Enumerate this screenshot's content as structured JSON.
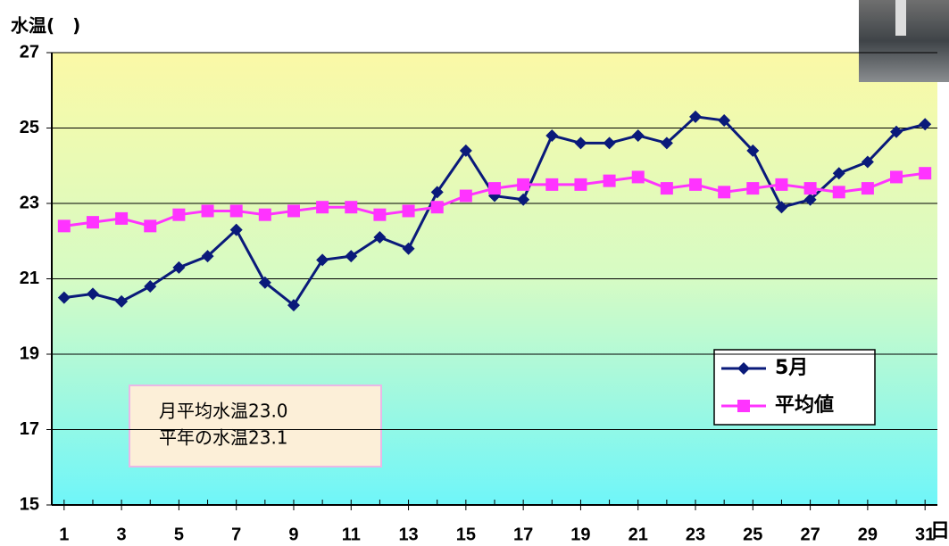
{
  "chart_data": {
    "type": "line",
    "y_label": "水温(　)",
    "x_label": "日",
    "x": [
      1,
      2,
      3,
      4,
      5,
      6,
      7,
      8,
      9,
      10,
      11,
      12,
      13,
      14,
      15,
      16,
      17,
      18,
      19,
      20,
      21,
      22,
      23,
      24,
      25,
      26,
      27,
      28,
      29,
      30,
      31
    ],
    "xlim": [
      0.57,
      31.43
    ],
    "xticks": [
      1,
      3,
      5,
      7,
      9,
      11,
      13,
      15,
      17,
      19,
      21,
      23,
      25,
      27,
      29,
      31
    ],
    "ylim": [
      15,
      27
    ],
    "yticks": [
      15,
      17,
      19,
      21,
      23,
      25,
      27
    ],
    "grid": true,
    "legend": "right",
    "series": [
      {
        "name": "5月",
        "color": "#0a1a7a",
        "marker": "diamond",
        "values": [
          20.5,
          20.6,
          20.4,
          20.8,
          21.3,
          21.6,
          22.3,
          20.9,
          20.3,
          21.5,
          21.6,
          22.1,
          21.8,
          23.3,
          24.4,
          23.2,
          23.1,
          24.8,
          24.6,
          24.6,
          24.8,
          24.6,
          25.3,
          25.2,
          24.4,
          22.9,
          23.1,
          23.8,
          24.1,
          24.9,
          25.1
        ]
      },
      {
        "name": "平均値",
        "color": "#ff33ff",
        "marker": "square",
        "values": [
          22.4,
          22.5,
          22.6,
          22.4,
          22.7,
          22.8,
          22.8,
          22.7,
          22.8,
          22.9,
          22.9,
          22.7,
          22.8,
          22.9,
          23.2,
          23.4,
          23.5,
          23.5,
          23.5,
          23.6,
          23.7,
          23.4,
          23.5,
          23.3,
          23.4,
          23.5,
          23.4,
          23.3,
          23.4,
          23.7,
          23.8
        ]
      }
    ],
    "annotations": [
      "月平均水温23.0",
      "平年の水温23.1"
    ]
  }
}
